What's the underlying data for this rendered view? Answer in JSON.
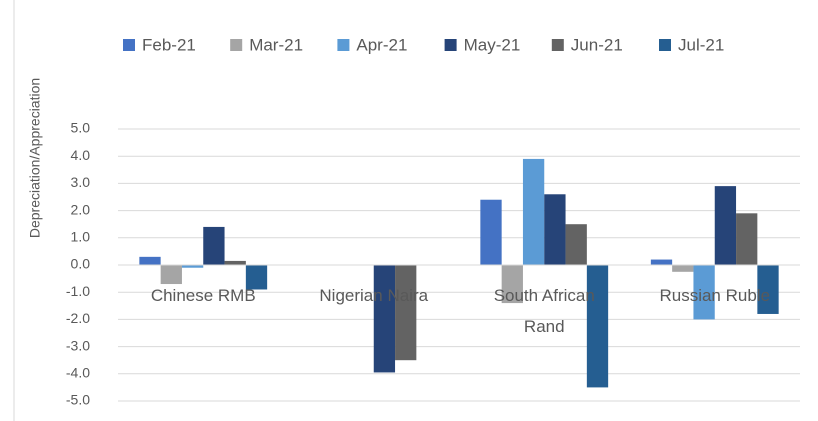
{
  "chart_data": {
    "type": "bar",
    "y_label": "Depreciation/Appreciation",
    "categories": [
      "Chinese RMB",
      "Nigerian Naira",
      "South African Rand",
      "Russian Ruble"
    ],
    "series": [
      {
        "name": "Feb-21",
        "color": "#4472c4",
        "values": [
          0.3,
          null,
          2.4,
          0.2
        ]
      },
      {
        "name": "Mar-21",
        "color": "#a5a5a5",
        "values": [
          -0.7,
          null,
          -1.4,
          -0.25
        ]
      },
      {
        "name": "Apr-21",
        "color": "#5b9bd5",
        "values": [
          -0.1,
          null,
          3.9,
          -2.0
        ]
      },
      {
        "name": "May-21",
        "color": "#264478",
        "values": [
          1.4,
          -3.95,
          2.6,
          2.9
        ]
      },
      {
        "name": "Jun-21",
        "color": "#636363",
        "values": [
          0.15,
          -3.5,
          1.5,
          1.9
        ]
      },
      {
        "name": "Jul-21",
        "color": "#255e91",
        "values": [
          -0.9,
          null,
          -4.5,
          -1.8
        ]
      }
    ],
    "ylim": [
      -5,
      5
    ],
    "yticks": [
      {
        "value": -5,
        "label": "-5.0"
      },
      {
        "value": -4,
        "label": "-4.0"
      },
      {
        "value": -3,
        "label": "-3.0"
      },
      {
        "value": -2,
        "label": "-2.0"
      },
      {
        "value": -1,
        "label": "-1.0"
      },
      {
        "value": 0,
        "label": "0.0"
      },
      {
        "value": 1,
        "label": "1.0"
      },
      {
        "value": 2,
        "label": "2.0"
      },
      {
        "value": 3,
        "label": "3.0"
      },
      {
        "value": 4,
        "label": "4.0"
      },
      {
        "value": 5,
        "label": "5.0"
      }
    ],
    "grid": true,
    "legend": "top"
  }
}
